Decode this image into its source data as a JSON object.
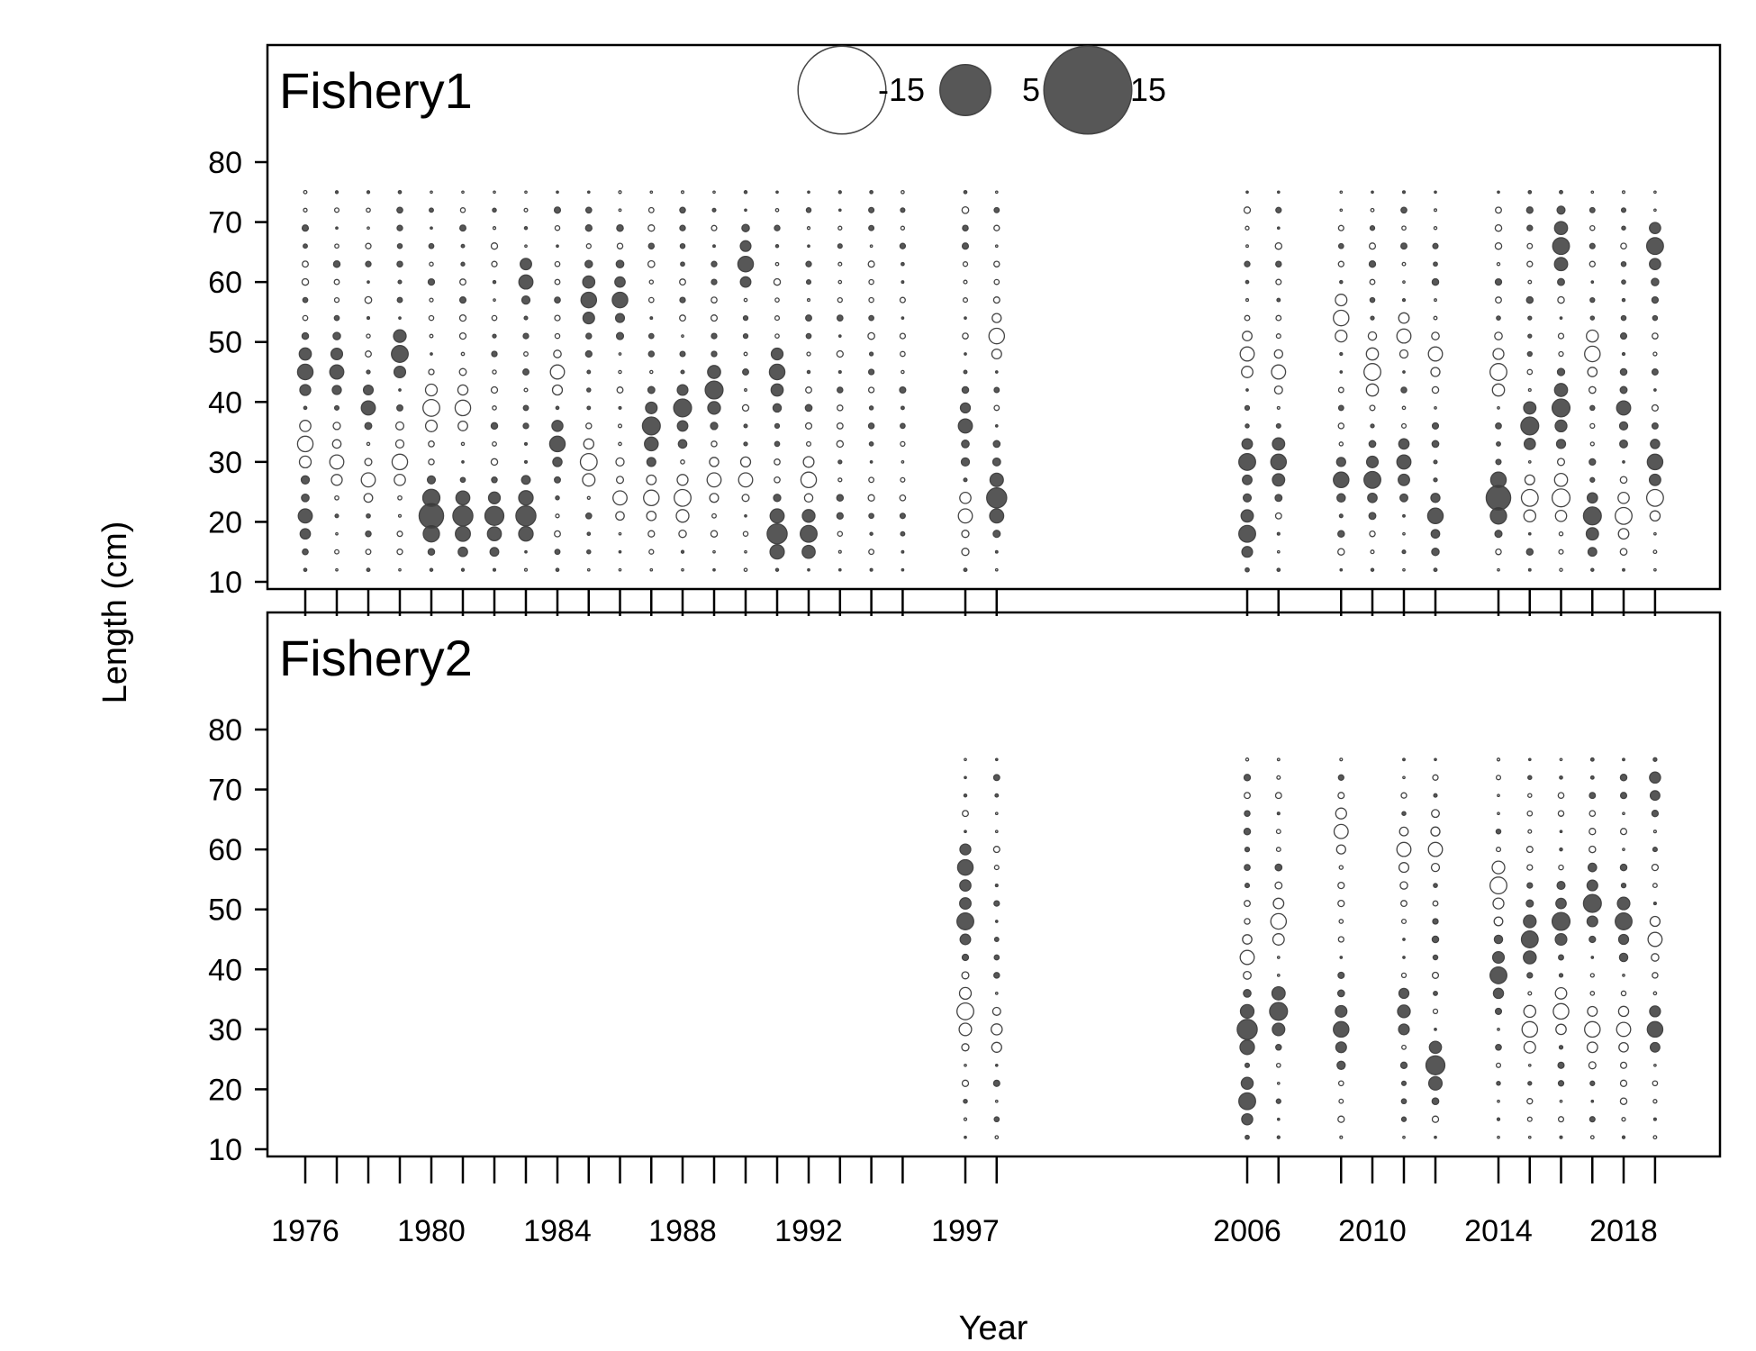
{
  "chart_data": {
    "type": "scatter",
    "variant": "bubble",
    "xlabel": "Year",
    "ylabel": "Length (cm)",
    "ylim": [
      10,
      80
    ],
    "y_ticks": [
      10,
      20,
      30,
      40,
      50,
      60,
      70,
      80
    ],
    "x_tick_labels": [
      "1976",
      "1980",
      "1984",
      "1988",
      "1992",
      "1997",
      "2006",
      "2010",
      "2014",
      "2018"
    ],
    "legend": {
      "placement": "top-center",
      "entries": [
        {
          "label": "-15",
          "value": -15
        },
        {
          "label": "5",
          "value": 5
        },
        {
          "label": "15",
          "value": 15
        }
      ]
    },
    "colors": {
      "positive": "#3a3a3a",
      "negative_fill": "#ffffff",
      "outline": "#444444"
    },
    "years_fishery1": [
      1976,
      1977,
      1978,
      1979,
      1980,
      1981,
      1982,
      1983,
      1984,
      1985,
      1986,
      1987,
      1988,
      1989,
      1990,
      1991,
      1992,
      1993,
      1994,
      1995,
      1997,
      1998,
      2006,
      2007,
      2009,
      2010,
      2011,
      2012,
      2014,
      2015,
      2016,
      2017,
      2018,
      2019
    ],
    "years_fishery2": [
      1997,
      1998,
      2006,
      2007,
      2009,
      2011,
      2012,
      2014,
      2015,
      2016,
      2017,
      2018,
      2019
    ],
    "length_bins": [
      12,
      15,
      18,
      21,
      24,
      27,
      30,
      33,
      36,
      39,
      42,
      45,
      48,
      51,
      54,
      57,
      60,
      63,
      66,
      69,
      72,
      75
    ],
    "panels": [
      {
        "title": "Fishery1",
        "notable_residuals": [
          {
            "year": 1976,
            "length": 45,
            "value": 6
          },
          {
            "year": 1976,
            "length": 21,
            "value": 5
          },
          {
            "year": 1976,
            "length": 33,
            "value": -6
          },
          {
            "year": 1977,
            "length": 45,
            "value": 5
          },
          {
            "year": 1977,
            "length": 30,
            "value": -5
          },
          {
            "year": 1978,
            "length": 39,
            "value": 5
          },
          {
            "year": 1978,
            "length": 27,
            "value": -5
          },
          {
            "year": 1979,
            "length": 48,
            "value": 7
          },
          {
            "year": 1979,
            "length": 30,
            "value": -6
          },
          {
            "year": 1980,
            "length": 21,
            "value": 15
          },
          {
            "year": 1980,
            "length": 39,
            "value": -7
          },
          {
            "year": 1981,
            "length": 21,
            "value": 10
          },
          {
            "year": 1981,
            "length": 39,
            "value": -6
          },
          {
            "year": 1982,
            "length": 21,
            "value": 9
          },
          {
            "year": 1983,
            "length": 21,
            "value": 10
          },
          {
            "year": 1983,
            "length": 60,
            "value": 5
          },
          {
            "year": 1984,
            "length": 33,
            "value": 6
          },
          {
            "year": 1984,
            "length": 45,
            "value": -5
          },
          {
            "year": 1985,
            "length": 57,
            "value": 6
          },
          {
            "year": 1985,
            "length": 30,
            "value": -7
          },
          {
            "year": 1986,
            "length": 57,
            "value": 6
          },
          {
            "year": 1986,
            "length": 24,
            "value": -5
          },
          {
            "year": 1987,
            "length": 36,
            "value": 8
          },
          {
            "year": 1987,
            "length": 24,
            "value": -6
          },
          {
            "year": 1988,
            "length": 39,
            "value": 8
          },
          {
            "year": 1988,
            "length": 24,
            "value": -7
          },
          {
            "year": 1989,
            "length": 42,
            "value": 8
          },
          {
            "year": 1989,
            "length": 27,
            "value": -5
          },
          {
            "year": 1990,
            "length": 63,
            "value": 6
          },
          {
            "year": 1990,
            "length": 27,
            "value": -5
          },
          {
            "year": 1991,
            "length": 18,
            "value": 10
          },
          {
            "year": 1991,
            "length": 45,
            "value": 6
          },
          {
            "year": 1992,
            "length": 18,
            "value": 7
          },
          {
            "year": 1992,
            "length": 27,
            "value": -6
          },
          {
            "year": 1997,
            "length": 36,
            "value": 5
          },
          {
            "year": 1997,
            "length": 21,
            "value": -5
          },
          {
            "year": 1998,
            "length": 24,
            "value": 10
          },
          {
            "year": 1998,
            "length": 51,
            "value": -6
          },
          {
            "year": 2006,
            "length": 30,
            "value": 7
          },
          {
            "year": 2006,
            "length": 18,
            "value": 7
          },
          {
            "year": 2006,
            "length": 48,
            "value": -5
          },
          {
            "year": 2007,
            "length": 30,
            "value": 6
          },
          {
            "year": 2007,
            "length": 45,
            "value": -5
          },
          {
            "year": 2009,
            "length": 27,
            "value": 6
          },
          {
            "year": 2009,
            "length": 54,
            "value": -6
          },
          {
            "year": 2010,
            "length": 27,
            "value": 7
          },
          {
            "year": 2010,
            "length": 45,
            "value": -7
          },
          {
            "year": 2011,
            "length": 30,
            "value": 5
          },
          {
            "year": 2011,
            "length": 51,
            "value": -5
          },
          {
            "year": 2012,
            "length": 21,
            "value": 6
          },
          {
            "year": 2012,
            "length": 48,
            "value": -5
          },
          {
            "year": 2014,
            "length": 24,
            "value": 15
          },
          {
            "year": 2014,
            "length": 45,
            "value": -7
          },
          {
            "year": 2015,
            "length": 36,
            "value": 8
          },
          {
            "year": 2015,
            "length": 24,
            "value": -7
          },
          {
            "year": 2016,
            "length": 66,
            "value": 7
          },
          {
            "year": 2016,
            "length": 39,
            "value": 8
          },
          {
            "year": 2016,
            "length": 24,
            "value": -8
          },
          {
            "year": 2017,
            "length": 21,
            "value": 8
          },
          {
            "year": 2017,
            "length": 48,
            "value": -6
          },
          {
            "year": 2018,
            "length": 39,
            "value": 5
          },
          {
            "year": 2018,
            "length": 21,
            "value": -7
          },
          {
            "year": 2019,
            "length": 66,
            "value": 7
          },
          {
            "year": 2019,
            "length": 30,
            "value": 6
          },
          {
            "year": 2019,
            "length": 24,
            "value": -7
          }
        ]
      },
      {
        "title": "Fishery2",
        "notable_residuals": [
          {
            "year": 1997,
            "length": 48,
            "value": 7
          },
          {
            "year": 1997,
            "length": 57,
            "value": 6
          },
          {
            "year": 1997,
            "length": 33,
            "value": -7
          },
          {
            "year": 1998,
            "length": 30,
            "value": -3
          },
          {
            "year": 2006,
            "length": 30,
            "value": 10
          },
          {
            "year": 2006,
            "length": 18,
            "value": 7
          },
          {
            "year": 2006,
            "length": 42,
            "value": -5
          },
          {
            "year": 2007,
            "length": 33,
            "value": 8
          },
          {
            "year": 2007,
            "length": 48,
            "value": -6
          },
          {
            "year": 2009,
            "length": 30,
            "value": 6
          },
          {
            "year": 2009,
            "length": 63,
            "value": -5
          },
          {
            "year": 2011,
            "length": 33,
            "value": 4
          },
          {
            "year": 2011,
            "length": 60,
            "value": -5
          },
          {
            "year": 2012,
            "length": 24,
            "value": 9
          },
          {
            "year": 2012,
            "length": 60,
            "value": -5
          },
          {
            "year": 2014,
            "length": 39,
            "value": 7
          },
          {
            "year": 2014,
            "length": 54,
            "value": -7
          },
          {
            "year": 2015,
            "length": 45,
            "value": 7
          },
          {
            "year": 2015,
            "length": 30,
            "value": -6
          },
          {
            "year": 2016,
            "length": 48,
            "value": 8
          },
          {
            "year": 2016,
            "length": 33,
            "value": -6
          },
          {
            "year": 2017,
            "length": 51,
            "value": 8
          },
          {
            "year": 2017,
            "length": 30,
            "value": -6
          },
          {
            "year": 2018,
            "length": 48,
            "value": 7
          },
          {
            "year": 2018,
            "length": 30,
            "value": -5
          },
          {
            "year": 2019,
            "length": 30,
            "value": 6
          },
          {
            "year": 2019,
            "length": 72,
            "value": 3
          },
          {
            "year": 2019,
            "length": 45,
            "value": -5
          }
        ]
      }
    ]
  }
}
